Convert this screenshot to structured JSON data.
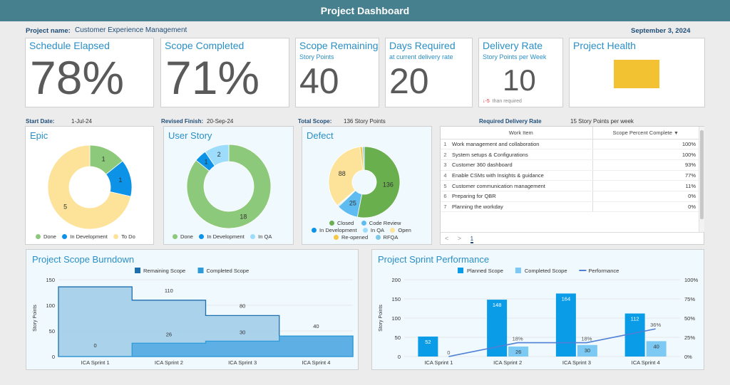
{
  "header": {
    "title": "Project Dashboard"
  },
  "project": {
    "name_label": "Project name:",
    "name_value": "Customer Experience Management",
    "date": "September 3, 2024"
  },
  "kpis": {
    "schedule": {
      "title": "Schedule Elapsed",
      "value": "78%"
    },
    "scope_completed": {
      "title": "Scope Completed",
      "value": "71%"
    },
    "scope_remaining": {
      "title": "Scope Remaining",
      "subtitle": "Story Points",
      "value": "40"
    },
    "days_required": {
      "title": "Days Required",
      "subtitle": "at current delivery rate",
      "value": "20"
    },
    "delivery_rate": {
      "title": "Delivery Rate",
      "subtitle": "Story Points per Week",
      "value": "10",
      "delta": "-5",
      "delta_text": "than required"
    },
    "health": {
      "title": "Project Health",
      "color": "#f2c232"
    }
  },
  "info": {
    "start_label": "Start Date:",
    "start_value": "1-Jul-24",
    "revised_label": "Revised Finish:",
    "revised_value": "20-Sep-24",
    "scope_label": "Total Scope:",
    "scope_value": "136 Story Points",
    "rate_label": "Required Delivery Rate",
    "rate_value": "15 Story Points per week"
  },
  "donuts": {
    "epic": {
      "title": "Epic",
      "slices": [
        {
          "name": "Done",
          "value": 1,
          "color": "#8dc97a"
        },
        {
          "name": "In Development",
          "value": 1,
          "color": "#0c93e8"
        },
        {
          "name": "To Do",
          "value": 5,
          "color": "#fde39a"
        }
      ],
      "legend": [
        "Done",
        "In Development",
        "To Do"
      ]
    },
    "story": {
      "title": "User Story",
      "slices": [
        {
          "name": "Done",
          "value": 18,
          "color": "#8dc97a"
        },
        {
          "name": "In Development",
          "value": 1,
          "color": "#0c93e8"
        },
        {
          "name": "In QA",
          "value": 2,
          "color": "#9ddcfb"
        }
      ],
      "legend": [
        "Done",
        "In Development",
        "In QA"
      ]
    },
    "defect": {
      "title": "Defect",
      "slices": [
        {
          "name": "Closed",
          "value": 136,
          "color": "#6aaf4e"
        },
        {
          "name": "Code Review",
          "value": 25,
          "color": "#5fbcf1"
        },
        {
          "name": "In Development",
          "value": 1,
          "color": "#0c93e8"
        },
        {
          "name": "In QA",
          "value": 1,
          "color": "#9ddcfb"
        },
        {
          "name": "Open",
          "value": 88,
          "color": "#fde39a"
        },
        {
          "name": "Re-opened",
          "value": 3,
          "color": "#f7c645"
        },
        {
          "name": "RFQA",
          "value": 2,
          "color": "#7cc8e8"
        }
      ],
      "legend": [
        "Closed",
        "Code Review",
        "In Development",
        "In QA",
        "Open",
        "Re-opened",
        "RFQA"
      ]
    }
  },
  "work_items": {
    "col1": "Work Item",
    "col2": "Scope Percent Complete",
    "rows": [
      {
        "n": "1",
        "item": "Work management and collaboration",
        "pct": "100%"
      },
      {
        "n": "2",
        "item": "System setups & Configurations",
        "pct": "100%"
      },
      {
        "n": "3",
        "item": "Customer 360 dashboard",
        "pct": "93%"
      },
      {
        "n": "4",
        "item": "Enable CSMs with Insights & guidance",
        "pct": "77%"
      },
      {
        "n": "5",
        "item": "Customer communication management",
        "pct": "11%"
      },
      {
        "n": "6",
        "item": "Preparing for QBR",
        "pct": "0%"
      },
      {
        "n": "7",
        "item": "Planning the workday",
        "pct": "0%"
      }
    ],
    "prev": "<",
    "next": ">",
    "page": "1"
  },
  "chart_data": [
    {
      "type": "area",
      "title": "Project Scope Burndown",
      "ylabel": "Story Points",
      "ylim": [
        0,
        150
      ],
      "yticks": [
        0,
        50,
        100,
        150
      ],
      "categories": [
        "ICA Sprint 1",
        "ICA Sprint 2",
        "ICA Sprint 3",
        "ICA Sprint 4"
      ],
      "series": [
        {
          "name": "Remaining Scope",
          "values": [
            136,
            110,
            80,
            40
          ],
          "color": "#1e6fae"
        },
        {
          "name": "Completed Scope",
          "values": [
            0,
            26,
            30,
            40
          ],
          "color": "#2f9ad8"
        }
      ]
    },
    {
      "type": "bar",
      "title": "Project Sprint Performance",
      "ylabel": "Story Points",
      "ylim": [
        0,
        200
      ],
      "yticks": [
        0,
        50,
        100,
        150,
        200
      ],
      "y2ticks": [
        "0%",
        "25%",
        "50%",
        "75%",
        "100%"
      ],
      "categories": [
        "ICA Sprint 1",
        "ICA Sprint 2",
        "ICA Sprint 3",
        "ICA Sprint 4"
      ],
      "series": [
        {
          "name": "Planned Scope",
          "values": [
            52,
            148,
            164,
            112
          ],
          "color": "#0b9ce8"
        },
        {
          "name": "Completed Scope",
          "values": [
            null,
            26,
            30,
            40
          ],
          "color": "#7ccaf3"
        },
        {
          "name": "Performance",
          "values": [
            0,
            18,
            18,
            36
          ],
          "labels": [
            "0",
            "18%",
            "18%",
            "36%"
          ],
          "color": "#4f7fd6"
        }
      ]
    }
  ]
}
